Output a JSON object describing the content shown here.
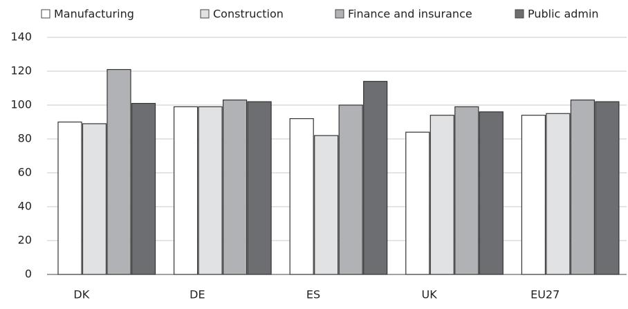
{
  "chart_data": {
    "type": "bar",
    "categories": [
      "DK",
      "DE",
      "ES",
      "UK",
      "EU27"
    ],
    "series": [
      {
        "name": "Manufacturing",
        "color": "#ffffff",
        "values": [
          90,
          99,
          92,
          84,
          94
        ]
      },
      {
        "name": "Construction",
        "color": "#e1e2e4",
        "values": [
          89,
          99,
          82,
          94,
          95
        ]
      },
      {
        "name": "Finance and insurance",
        "color": "#b1b2b5",
        "values": [
          121,
          103,
          100,
          99,
          103
        ]
      },
      {
        "name": "Public admin",
        "color": "#6d6e71",
        "values": [
          101,
          102,
          114,
          96,
          102
        ]
      }
    ],
    "ylim": [
      0,
      140
    ],
    "yticks": [
      0,
      20,
      40,
      60,
      80,
      100,
      120,
      140
    ],
    "grid": true
  }
}
